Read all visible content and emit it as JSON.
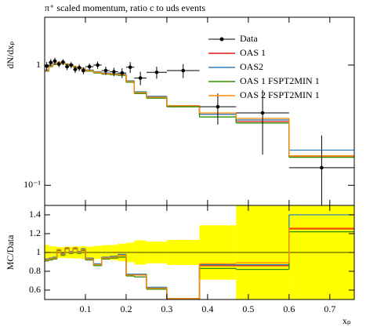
{
  "chart_data": {
    "type": "histogram",
    "title": "π⁺ scaled momentum, ratio c to uds events",
    "ylabel": "dN/dxₚ",
    "xlabel": "xₚ",
    "ratio_ylabel": "MC/Data",
    "bins": [
      0,
      0.01,
      0.02,
      0.03,
      0.04,
      0.05,
      0.06,
      0.07,
      0.08,
      0.09,
      0.1,
      0.12,
      0.14,
      0.16,
      0.18,
      0.2,
      0.22,
      0.25,
      0.3,
      0.38,
      0.47,
      0.6,
      0.76
    ],
    "xlim": [
      0,
      0.76
    ],
    "xticks": [
      0.1,
      0.2,
      0.3,
      0.4,
      0.5,
      0.6,
      0.7
    ],
    "ylim": [
      0.068,
      2.5
    ],
    "yscale": "log",
    "yticks": [
      {
        "value": 0.1,
        "label": "10⁻¹"
      },
      1
    ],
    "ratio_ylim": [
      0.5,
      1.5
    ],
    "ratio_yticks": [
      0.6,
      0.8,
      1,
      1.2,
      1.4
    ],
    "legend": "upper right",
    "band_color": "#ffff00",
    "data": {
      "name": "Data",
      "color": "#000000",
      "x": [
        0.005,
        0.015,
        0.025,
        0.035,
        0.045,
        0.055,
        0.065,
        0.075,
        0.085,
        0.095,
        0.11,
        0.13,
        0.15,
        0.17,
        0.19,
        0.21,
        0.235,
        0.275,
        0.34,
        0.425,
        0.535,
        0.68
      ],
      "values": [
        0.98,
        1.05,
        1.08,
        1.02,
        1.06,
        0.97,
        1.0,
        0.92,
        0.95,
        0.9,
        0.97,
        1.0,
        0.9,
        0.88,
        0.86,
        0.96,
        0.78,
        0.87,
        0.9,
        0.45,
        0.4,
        0.14
      ],
      "errors": [
        0.08,
        0.07,
        0.07,
        0.06,
        0.06,
        0.06,
        0.06,
        0.06,
        0.06,
        0.06,
        0.06,
        0.07,
        0.07,
        0.07,
        0.08,
        0.1,
        0.1,
        0.1,
        0.12,
        0.13,
        0.22,
        0.12
      ]
    },
    "series": [
      {
        "name": "OAS 1",
        "color": "#e41a1c",
        "values": [
          0.9,
          0.98,
          1.02,
          1.05,
          1.04,
          1.02,
          1.0,
          0.97,
          0.95,
          0.93,
          0.9,
          0.87,
          0.85,
          0.84,
          0.83,
          0.73,
          0.59,
          0.54,
          0.46,
          0.39,
          0.34,
          0.175
        ],
        "ratios": [
          0.92,
          0.93,
          0.94,
          1.03,
          0.98,
          1.05,
          1.0,
          1.05,
          1.0,
          1.03,
          0.93,
          0.87,
          0.94,
          0.95,
          0.97,
          0.76,
          0.76,
          0.62,
          0.51,
          0.86,
          0.86,
          1.25
        ]
      },
      {
        "name": "OAS2",
        "color": "#377eb8",
        "values": [
          0.91,
          0.99,
          1.03,
          1.05,
          1.05,
          1.02,
          1.01,
          0.97,
          0.96,
          0.94,
          0.91,
          0.88,
          0.86,
          0.85,
          0.84,
          0.74,
          0.6,
          0.55,
          0.46,
          0.39,
          0.35,
          0.196
        ],
        "ratios": [
          0.93,
          0.94,
          0.95,
          1.03,
          0.99,
          1.05,
          1.01,
          1.05,
          1.01,
          1.04,
          0.94,
          0.88,
          0.95,
          0.96,
          0.98,
          0.77,
          0.77,
          0.63,
          0.51,
          0.87,
          0.87,
          1.4
        ]
      },
      {
        "name": "OAS 1 FSPT2MIN 1",
        "color": "#2e8b00",
        "values": [
          0.89,
          0.97,
          1.01,
          1.04,
          1.03,
          1.01,
          0.99,
          0.96,
          0.94,
          0.92,
          0.89,
          0.86,
          0.84,
          0.83,
          0.82,
          0.72,
          0.58,
          0.53,
          0.45,
          0.37,
          0.33,
          0.171
        ],
        "ratios": [
          0.91,
          0.92,
          0.93,
          1.02,
          0.97,
          1.04,
          0.99,
          1.04,
          0.99,
          1.02,
          0.92,
          0.86,
          0.93,
          0.94,
          0.95,
          0.75,
          0.74,
          0.61,
          0.5,
          0.83,
          0.82,
          1.22
        ]
      },
      {
        "name": "OAS 2 FSPT2MIN 1",
        "color": "#ff8c00",
        "values": [
          0.9,
          0.98,
          1.02,
          1.05,
          1.04,
          1.02,
          1.0,
          0.97,
          0.95,
          0.93,
          0.9,
          0.87,
          0.85,
          0.84,
          0.83,
          0.73,
          0.59,
          0.54,
          0.46,
          0.4,
          0.36,
          0.176
        ],
        "ratios": [
          0.92,
          0.93,
          0.94,
          1.03,
          0.98,
          1.05,
          1.0,
          1.05,
          1.0,
          1.03,
          0.93,
          0.87,
          0.94,
          0.95,
          0.97,
          0.76,
          0.76,
          0.62,
          0.51,
          0.88,
          0.89,
          1.26
        ]
      }
    ]
  }
}
